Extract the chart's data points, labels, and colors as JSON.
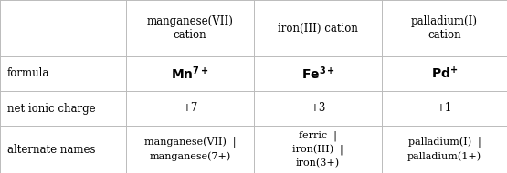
{
  "col_headers": [
    "manganese(VII)\ncation",
    "iron(III) cation",
    "palladium(I)\ncation"
  ],
  "row_headers": [
    "formula",
    "net ionic charge",
    "alternate names"
  ],
  "charges": [
    "+7",
    "+3",
    "+1"
  ],
  "alt_names_col1": "manganese(VII)  |\nmanganese(7+)",
  "alt_names_col2": "ferric  |\niron(III)  |\niron(3+)",
  "alt_names_col3": "palladium(I)  |\npalladium(1+)",
  "bg_color": "#ffffff",
  "line_color": "#bbbbbb",
  "text_color": "#000000",
  "font_size": 8.5,
  "formula_font_size": 10
}
